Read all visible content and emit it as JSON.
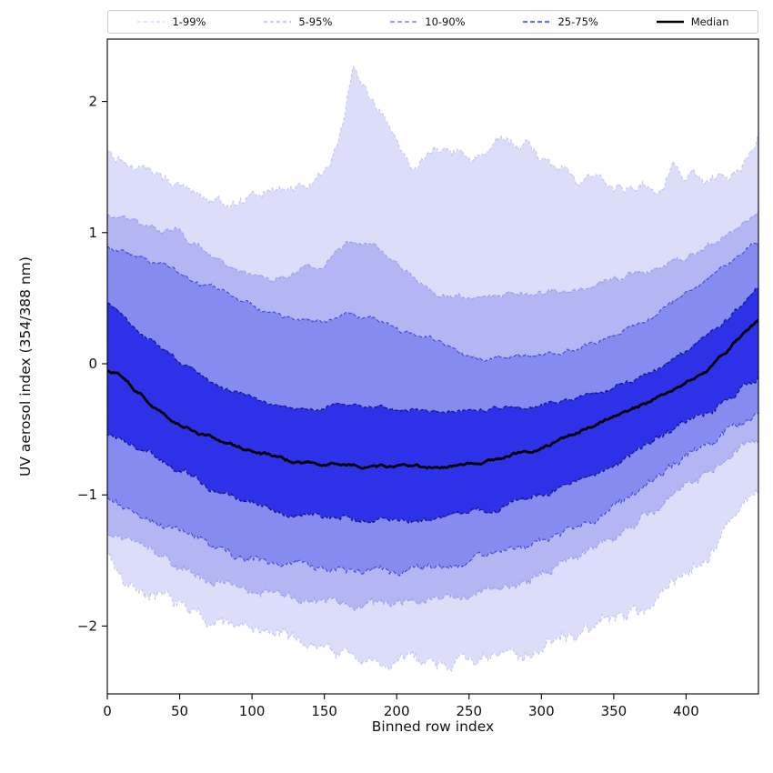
{
  "axes": {
    "xlabel": "Binned row index",
    "ylabel": "UV aerosol index (354/388 nm)",
    "xticks": [
      0,
      50,
      100,
      150,
      200,
      250,
      300,
      350,
      400
    ],
    "yticks": [
      2,
      1,
      0,
      -1,
      -2
    ],
    "xlim": [
      0,
      450
    ],
    "ylim": [
      -2.52,
      2.49
    ],
    "grid": false,
    "frame_color": "#000000",
    "background": "#ffffff"
  },
  "legend": {
    "position": "top-outside",
    "items": [
      {
        "label": "1-99%",
        "color": "#d4d5f6",
        "dash": "4 3",
        "width": 1.2
      },
      {
        "label": "5-95%",
        "color": "#b7baf3",
        "dash": "4 3",
        "width": 1.4
      },
      {
        "label": "10-90%",
        "color": "#8f93ee",
        "dash": "5 3",
        "width": 1.7
      },
      {
        "label": "25-75%",
        "color": "#6a6fe4",
        "dash": "5 3",
        "width": 2.2
      },
      {
        "label": "Median",
        "color": "#000000",
        "dash": "",
        "width": 2.6
      }
    ]
  },
  "chart_data": {
    "type": "area",
    "subtype": "percentile-fan",
    "title": "",
    "xlabel": "Binned row index",
    "ylabel": "UV aerosol index (354/388 nm)",
    "xlim": [
      0,
      450
    ],
    "ylim": [
      -2.52,
      2.49
    ],
    "legend_entries": [
      "1-99%",
      "5-95%",
      "10-90%",
      "25-75%",
      "Median"
    ],
    "median_color": "#000000",
    "median_width": 2.8,
    "bands": [
      {
        "label": "1-99%",
        "lower": "p01",
        "upper": "p99",
        "fill": "#dcddf8",
        "edge": "#bfc2f4",
        "edge_width": 1.0,
        "dash": "3 3"
      },
      {
        "label": "5-95%",
        "lower": "p05",
        "upper": "p95",
        "fill": "#b3b6f3",
        "edge": "#979bf0",
        "edge_width": 1.0,
        "dash": "4 2.5"
      },
      {
        "label": "10-90%",
        "lower": "p10",
        "upper": "p90",
        "fill": "#868bef",
        "edge": "#4449d0",
        "edge_width": 1.1,
        "dash": "4 2.5"
      },
      {
        "label": "25-75%",
        "lower": "p25",
        "upper": "p75",
        "fill": "#2d32e9",
        "edge": "#15188f",
        "edge_width": 1.3,
        "dash": "4 2.5"
      }
    ],
    "percentile_keypoints": {
      "p01": [
        [
          0,
          -1.42
        ],
        [
          6,
          -1.56
        ],
        [
          15,
          -1.65
        ],
        [
          30,
          -1.75
        ],
        [
          50,
          -1.86
        ],
        [
          75,
          -1.96
        ],
        [
          100,
          -2.03
        ],
        [
          125,
          -2.1
        ],
        [
          150,
          -2.16
        ],
        [
          165,
          -2.21
        ],
        [
          180,
          -2.28
        ],
        [
          192,
          -2.31
        ],
        [
          205,
          -2.27
        ],
        [
          220,
          -2.24
        ],
        [
          235,
          -2.27
        ],
        [
          250,
          -2.24
        ],
        [
          263,
          -2.28
        ],
        [
          278,
          -2.23
        ],
        [
          300,
          -2.16
        ],
        [
          325,
          -2.06
        ],
        [
          350,
          -1.93
        ],
        [
          375,
          -1.85
        ],
        [
          400,
          -1.56
        ],
        [
          415,
          -1.45
        ],
        [
          430,
          -1.22
        ],
        [
          442,
          -1.08
        ],
        [
          450,
          -0.97
        ]
      ],
      "p05": [
        [
          0,
          -1.28
        ],
        [
          25,
          -1.41
        ],
        [
          50,
          -1.55
        ],
        [
          75,
          -1.66
        ],
        [
          100,
          -1.73
        ],
        [
          125,
          -1.78
        ],
        [
          150,
          -1.81
        ],
        [
          175,
          -1.83
        ],
        [
          200,
          -1.83
        ],
        [
          225,
          -1.8
        ],
        [
          250,
          -1.77
        ],
        [
          275,
          -1.7
        ],
        [
          300,
          -1.61
        ],
        [
          325,
          -1.47
        ],
        [
          350,
          -1.32
        ],
        [
          375,
          -1.16
        ],
        [
          400,
          -0.93
        ],
        [
          425,
          -0.7
        ],
        [
          450,
          -0.57
        ]
      ],
      "p10": [
        [
          0,
          -1.03
        ],
        [
          25,
          -1.14
        ],
        [
          50,
          -1.28
        ],
        [
          75,
          -1.4
        ],
        [
          100,
          -1.48
        ],
        [
          125,
          -1.53
        ],
        [
          150,
          -1.56
        ],
        [
          175,
          -1.57
        ],
        [
          200,
          -1.58
        ],
        [
          225,
          -1.55
        ],
        [
          250,
          -1.51
        ],
        [
          275,
          -1.44
        ],
        [
          300,
          -1.36
        ],
        [
          325,
          -1.23
        ],
        [
          350,
          -1.08
        ],
        [
          375,
          -0.9
        ],
        [
          400,
          -0.7
        ],
        [
          425,
          -0.52
        ],
        [
          450,
          -0.37
        ]
      ],
      "p25": [
        [
          0,
          -0.55
        ],
        [
          25,
          -0.67
        ],
        [
          50,
          -0.81
        ],
        [
          75,
          -0.95
        ],
        [
          100,
          -1.05
        ],
        [
          125,
          -1.12
        ],
        [
          150,
          -1.17
        ],
        [
          175,
          -1.19
        ],
        [
          200,
          -1.2
        ],
        [
          225,
          -1.19
        ],
        [
          250,
          -1.15
        ],
        [
          275,
          -1.09
        ],
        [
          300,
          -1.0
        ],
        [
          325,
          -0.89
        ],
        [
          350,
          -0.76
        ],
        [
          375,
          -0.62
        ],
        [
          400,
          -0.45
        ],
        [
          425,
          -0.28
        ],
        [
          450,
          -0.1
        ]
      ],
      "median": [
        [
          0,
          -0.05
        ],
        [
          8,
          -0.08
        ],
        [
          20,
          -0.2
        ],
        [
          32,
          -0.32
        ],
        [
          50,
          -0.46
        ],
        [
          75,
          -0.58
        ],
        [
          100,
          -0.67
        ],
        [
          125,
          -0.73
        ],
        [
          150,
          -0.76
        ],
        [
          175,
          -0.78
        ],
        [
          200,
          -0.79
        ],
        [
          228,
          -0.8
        ],
        [
          250,
          -0.78
        ],
        [
          275,
          -0.72
        ],
        [
          300,
          -0.64
        ],
        [
          325,
          -0.53
        ],
        [
          350,
          -0.4
        ],
        [
          375,
          -0.29
        ],
        [
          400,
          -0.13
        ],
        [
          415,
          -0.04
        ],
        [
          430,
          0.12
        ],
        [
          442,
          0.26
        ],
        [
          450,
          0.32
        ]
      ],
      "p75": [
        [
          0,
          0.47
        ],
        [
          25,
          0.24
        ],
        [
          50,
          0.02
        ],
        [
          75,
          -0.16
        ],
        [
          100,
          -0.27
        ],
        [
          125,
          -0.33
        ],
        [
          150,
          -0.35
        ],
        [
          170,
          -0.3
        ],
        [
          185,
          -0.31
        ],
        [
          200,
          -0.34
        ],
        [
          225,
          -0.36
        ],
        [
          250,
          -0.36
        ],
        [
          275,
          -0.34
        ],
        [
          300,
          -0.31
        ],
        [
          325,
          -0.26
        ],
        [
          350,
          -0.18
        ],
        [
          375,
          -0.08
        ],
        [
          400,
          0.09
        ],
        [
          425,
          0.31
        ],
        [
          450,
          0.57
        ]
      ],
      "p90": [
        [
          0,
          0.9
        ],
        [
          25,
          0.8
        ],
        [
          50,
          0.7
        ],
        [
          75,
          0.56
        ],
        [
          100,
          0.44
        ],
        [
          125,
          0.35
        ],
        [
          150,
          0.31
        ],
        [
          170,
          0.38
        ],
        [
          185,
          0.33
        ],
        [
          200,
          0.26
        ],
        [
          215,
          0.22
        ],
        [
          232,
          0.15
        ],
        [
          250,
          0.03
        ],
        [
          275,
          0.05
        ],
        [
          300,
          0.07
        ],
        [
          325,
          0.13
        ],
        [
          350,
          0.22
        ],
        [
          375,
          0.36
        ],
        [
          400,
          0.52
        ],
        [
          425,
          0.72
        ],
        [
          450,
          0.94
        ]
      ],
      "p95": [
        [
          0,
          1.12
        ],
        [
          25,
          1.06
        ],
        [
          50,
          0.99
        ],
        [
          75,
          0.82
        ],
        [
          100,
          0.66
        ],
        [
          125,
          0.68
        ],
        [
          150,
          0.78
        ],
        [
          170,
          0.94
        ],
        [
          185,
          0.88
        ],
        [
          200,
          0.76
        ],
        [
          215,
          0.62
        ],
        [
          228,
          0.53
        ],
        [
          250,
          0.5
        ],
        [
          275,
          0.52
        ],
        [
          300,
          0.53
        ],
        [
          325,
          0.57
        ],
        [
          350,
          0.62
        ],
        [
          375,
          0.72
        ],
        [
          400,
          0.82
        ],
        [
          425,
          0.94
        ],
        [
          450,
          1.13
        ]
      ],
      "p99": [
        [
          0,
          1.61
        ],
        [
          25,
          1.48
        ],
        [
          50,
          1.38
        ],
        [
          70,
          1.26
        ],
        [
          88,
          1.21
        ],
        [
          100,
          1.26
        ],
        [
          112,
          1.35
        ],
        [
          125,
          1.31
        ],
        [
          140,
          1.36
        ],
        [
          150,
          1.43
        ],
        [
          160,
          1.72
        ],
        [
          170,
          2.28
        ],
        [
          178,
          2.15
        ],
        [
          190,
          1.86
        ],
        [
          200,
          1.74
        ],
        [
          210,
          1.57
        ],
        [
          220,
          1.63
        ],
        [
          232,
          1.57
        ],
        [
          245,
          1.54
        ],
        [
          258,
          1.56
        ],
        [
          270,
          1.69
        ],
        [
          282,
          1.72
        ],
        [
          295,
          1.6
        ],
        [
          310,
          1.53
        ],
        [
          325,
          1.43
        ],
        [
          340,
          1.38
        ],
        [
          358,
          1.31
        ],
        [
          372,
          1.34
        ],
        [
          385,
          1.37
        ],
        [
          391,
          1.58
        ],
        [
          398,
          1.44
        ],
        [
          412,
          1.42
        ],
        [
          425,
          1.4
        ],
        [
          437,
          1.5
        ],
        [
          450,
          1.76
        ]
      ]
    }
  }
}
